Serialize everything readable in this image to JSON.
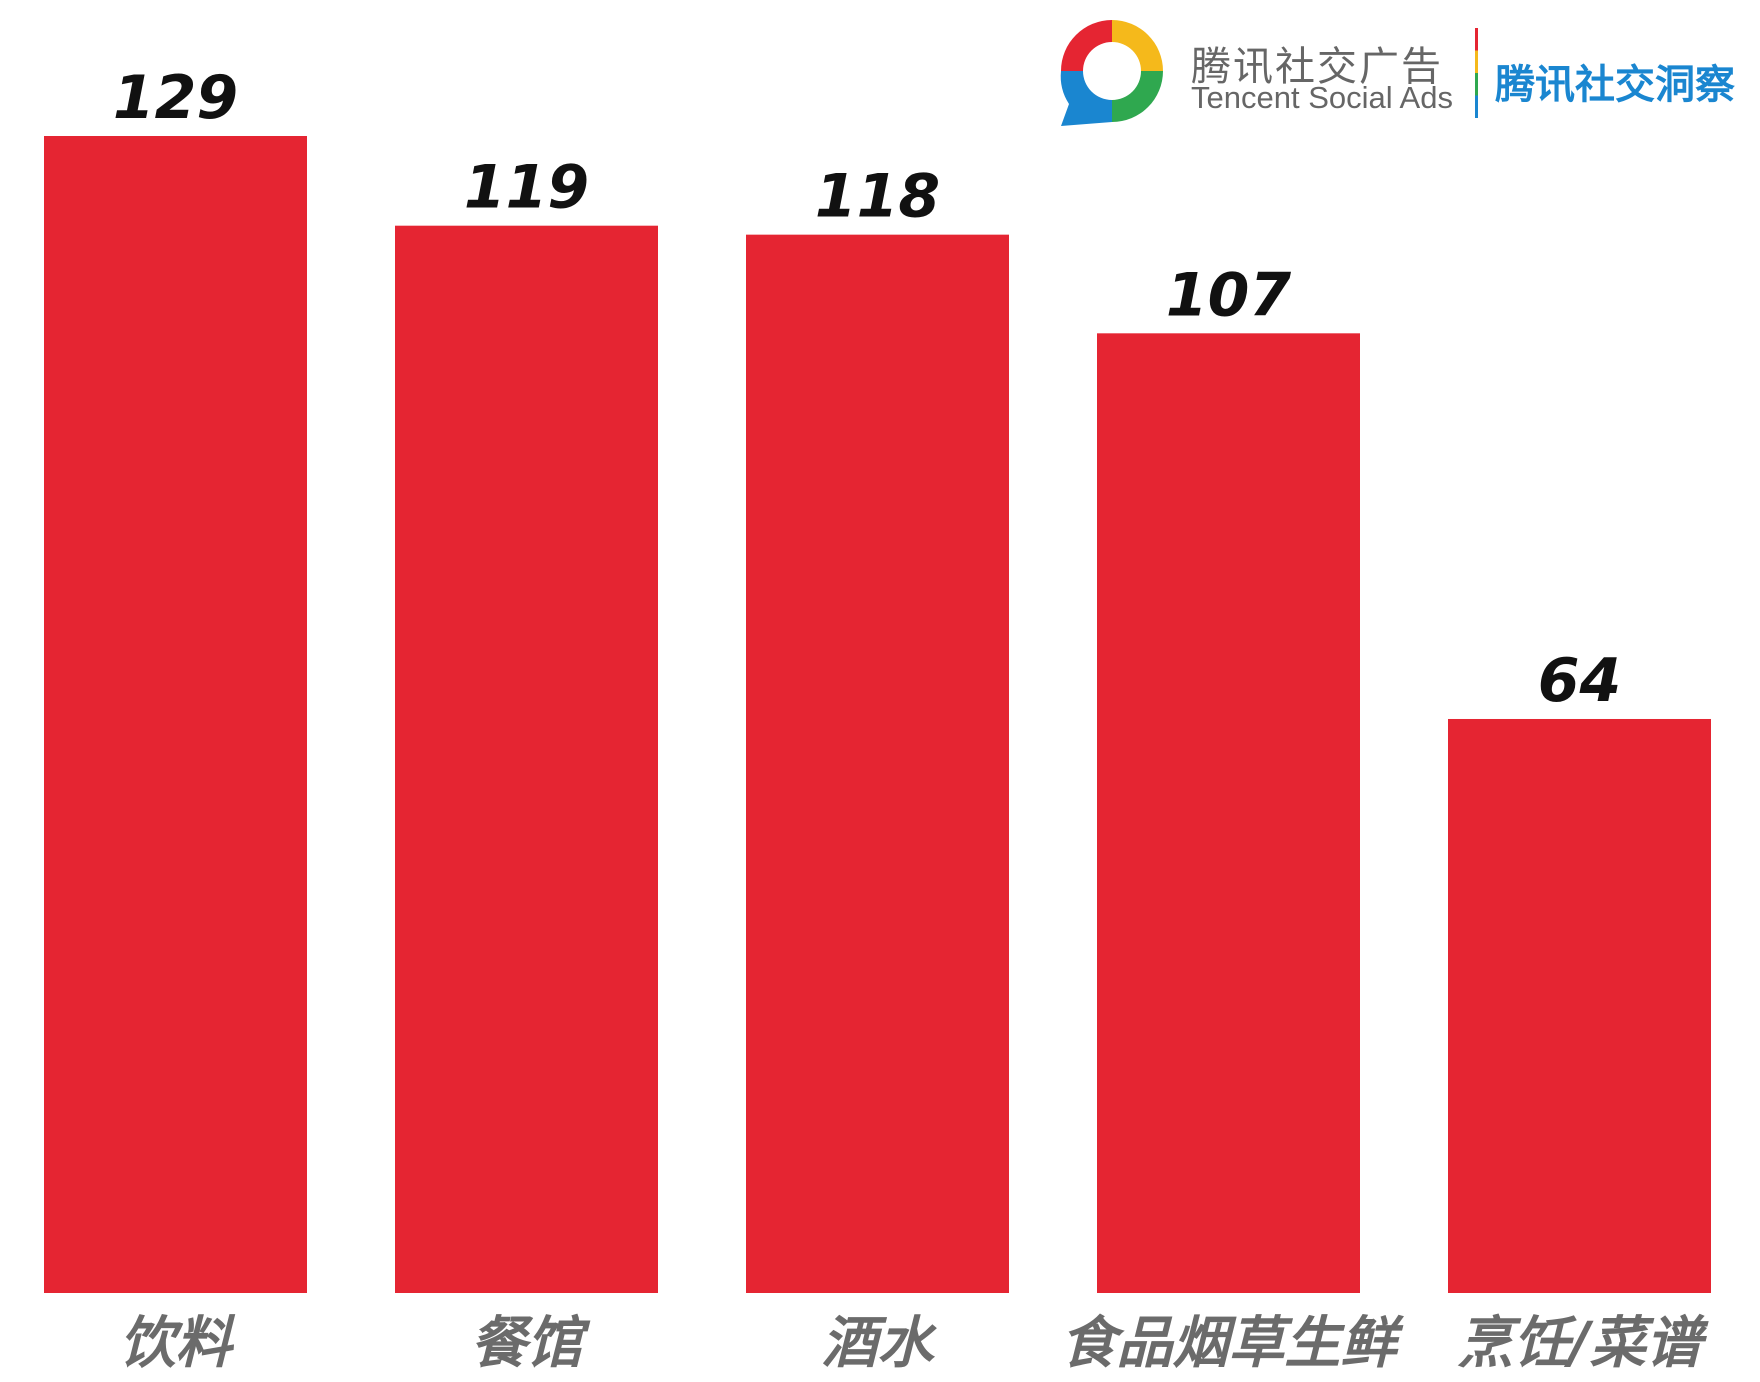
{
  "brand": {
    "name_cn": "腾讯社交广告",
    "name_en": "Tencent Social Ads",
    "insight": "腾讯社交洞察"
  },
  "colors": {
    "bar": "#e52532",
    "value_label": "#111111",
    "category_label": "#6b6b6b",
    "brand_text": "#666666",
    "brand_accent": "#1a86d0",
    "logo_red": "#e52532",
    "logo_yellow": "#f5b91b",
    "logo_green": "#2fa84f",
    "logo_blue": "#1a86d0"
  },
  "chart_data": {
    "type": "bar",
    "title": "",
    "xlabel": "",
    "ylabel": "",
    "categories": [
      "饮料",
      "餐馆",
      "酒水",
      "食品烟草生鲜",
      "烹饪/菜谱"
    ],
    "values": [
      129,
      119,
      118,
      107,
      64
    ],
    "ylim": [
      0,
      129
    ],
    "grid": false,
    "legend": "none",
    "data_labels": true
  }
}
